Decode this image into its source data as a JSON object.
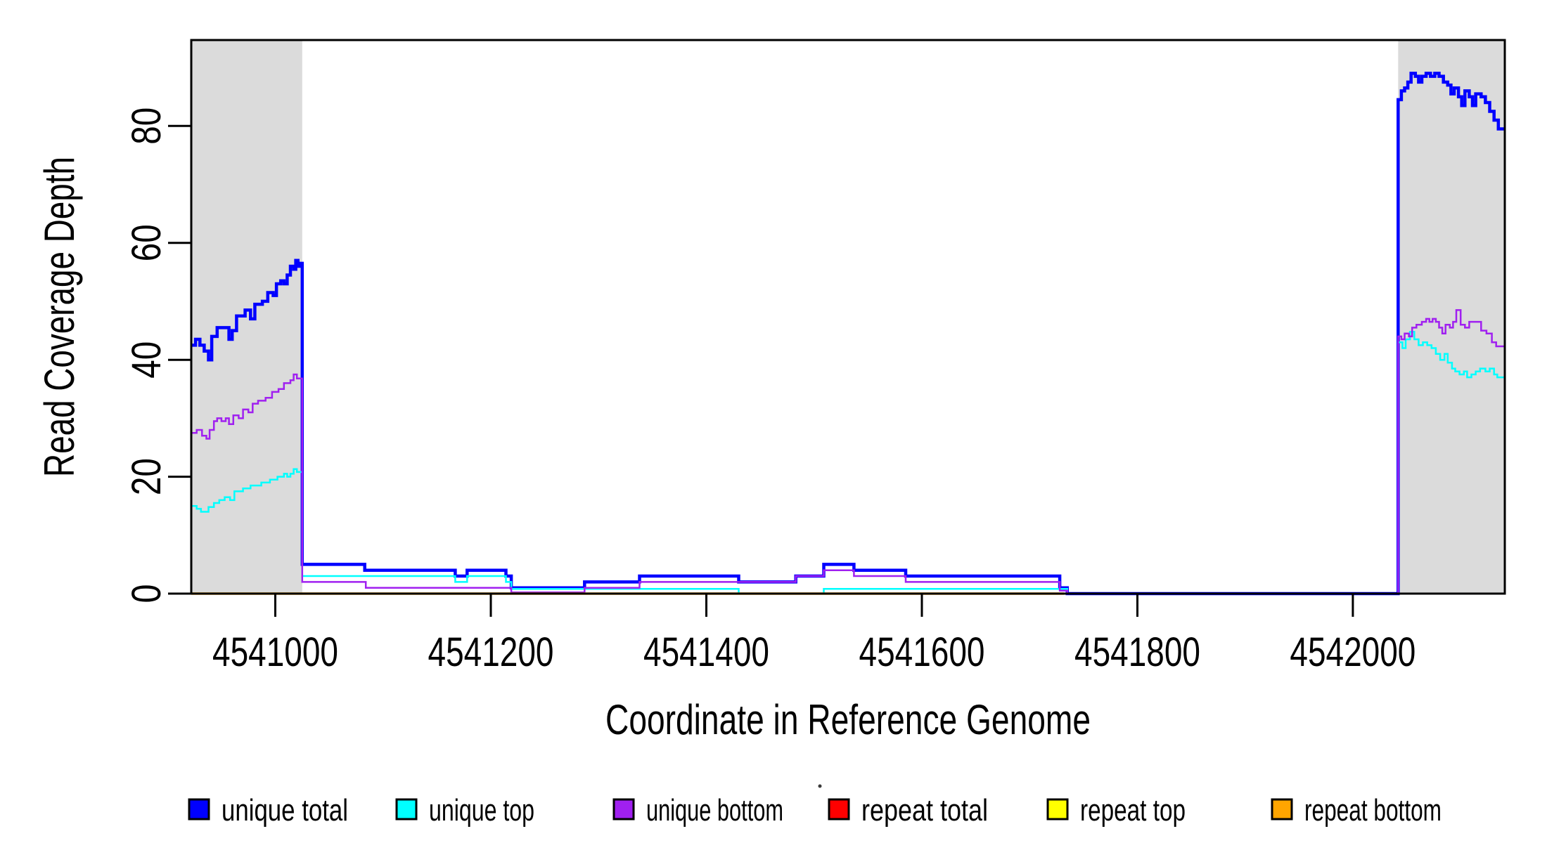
{
  "figure": {
    "background": "#ffffff",
    "shaded_region_color": "#DBDBDB",
    "stray_mark_color": "#3a3a3a"
  },
  "axes": {
    "x": {
      "label": "Coordinate in Reference Genome",
      "ticks": [
        4541000,
        4541200,
        4541400,
        4541600,
        4541800,
        4542000
      ],
      "range": [
        4540922,
        4542141
      ]
    },
    "y": {
      "label": "Read Coverage Depth",
      "ticks": [
        0,
        20,
        40,
        60,
        80
      ],
      "range": [
        0,
        94.7
      ]
    }
  },
  "chart_data": {
    "type": "line",
    "subtype": "step",
    "title": "",
    "xlabel": "Coordinate in Reference Genome",
    "ylabel": "Read Coverage Depth",
    "xlim": [
      4540922,
      4542141
    ],
    "ylim": [
      0,
      94.7
    ],
    "grid": false,
    "legend_position": "bottom",
    "shaded_regions": [
      {
        "x0": 4540922,
        "x1": 4541025
      },
      {
        "x0": 4542042,
        "x1": 4542141
      }
    ],
    "series": [
      {
        "name": "unique total",
        "color": "#0000FF",
        "width": 4.5,
        "end": 4542141,
        "points": [
          [
            4540922,
            42.5
          ],
          [
            4540926,
            43.5
          ],
          [
            4540930,
            42.5
          ],
          [
            4540934,
            41.5
          ],
          [
            4540938,
            40
          ],
          [
            4540941,
            44
          ],
          [
            4540946,
            45.5
          ],
          [
            4540953,
            45.5
          ],
          [
            4540957,
            43.5
          ],
          [
            4540960,
            45
          ],
          [
            4540964,
            47.5
          ],
          [
            4540972,
            48.5
          ],
          [
            4540977,
            47
          ],
          [
            4540981,
            49.5
          ],
          [
            4540988,
            50
          ],
          [
            4540993,
            51.5
          ],
          [
            4540998,
            51
          ],
          [
            4541001,
            53
          ],
          [
            4541005,
            53.5
          ],
          [
            4541008,
            53
          ],
          [
            4541011,
            54.5
          ],
          [
            4541014,
            56
          ],
          [
            4541017,
            55.5
          ],
          [
            4541019,
            57
          ],
          [
            4541021,
            56
          ],
          [
            4541023,
            56.5
          ],
          [
            4541025,
            5
          ],
          [
            4541083,
            4
          ],
          [
            4541167,
            3
          ],
          [
            4541178,
            4
          ],
          [
            4541214,
            3
          ],
          [
            4541219,
            1
          ],
          [
            4541287,
            2
          ],
          [
            4541338,
            3
          ],
          [
            4541430,
            2
          ],
          [
            4541483,
            3
          ],
          [
            4541509,
            5
          ],
          [
            4541537,
            4
          ],
          [
            4541585,
            3
          ],
          [
            4541728,
            1
          ],
          [
            4541735,
            0
          ],
          [
            4542042,
            84.5
          ],
          [
            4542045,
            86
          ],
          [
            4542048,
            86.5
          ],
          [
            4542051,
            87.5
          ],
          [
            4542054,
            89
          ],
          [
            4542058,
            88.5
          ],
          [
            4542061,
            87.5
          ],
          [
            4542064,
            88.5
          ],
          [
            4542068,
            89
          ],
          [
            4542072,
            88.5
          ],
          [
            4542076,
            89
          ],
          [
            4542080,
            88.5
          ],
          [
            4542084,
            87.5
          ],
          [
            4542088,
            87
          ],
          [
            4542091,
            85.5
          ],
          [
            4542094,
            86.5
          ],
          [
            4542098,
            85
          ],
          [
            4542101,
            83.5
          ],
          [
            4542104,
            86
          ],
          [
            4542108,
            85
          ],
          [
            4542111,
            83.5
          ],
          [
            4542114,
            85.5
          ],
          [
            4542119,
            85
          ],
          [
            4542123,
            84
          ],
          [
            4542127,
            82.5
          ],
          [
            4542131,
            81
          ],
          [
            4542135,
            79.5
          ]
        ]
      },
      {
        "name": "unique top",
        "color": "#00FFFF",
        "width": 2.5,
        "end": 4542141,
        "points": [
          [
            4540922,
            15
          ],
          [
            4540927,
            14.5
          ],
          [
            4540931,
            14
          ],
          [
            4540938,
            14.8
          ],
          [
            4540943,
            15.5
          ],
          [
            4540948,
            16
          ],
          [
            4540953,
            16.5
          ],
          [
            4540958,
            16
          ],
          [
            4540962,
            17.5
          ],
          [
            4540970,
            18
          ],
          [
            4540977,
            18.5
          ],
          [
            4540987,
            19
          ],
          [
            4540995,
            19.5
          ],
          [
            4541002,
            20
          ],
          [
            4541008,
            20.5
          ],
          [
            4541011,
            20
          ],
          [
            4541014,
            20.5
          ],
          [
            4541017,
            21.3
          ],
          [
            4541020,
            20.8
          ],
          [
            4541025,
            3
          ],
          [
            4541167,
            2
          ],
          [
            4541178,
            3
          ],
          [
            4541214,
            2
          ],
          [
            4541219,
            0.8
          ],
          [
            4541430,
            0
          ],
          [
            4541509,
            0.8
          ],
          [
            4541735,
            0
          ],
          [
            4542042,
            43
          ],
          [
            4542046,
            42
          ],
          [
            4542049,
            43.5
          ],
          [
            4542053,
            44.8
          ],
          [
            4542057,
            43.5
          ],
          [
            4542061,
            42.5
          ],
          [
            4542065,
            43
          ],
          [
            4542069,
            42.5
          ],
          [
            4542073,
            42
          ],
          [
            4542077,
            41
          ],
          [
            4542081,
            40
          ],
          [
            4542085,
            41
          ],
          [
            4542088,
            39.5
          ],
          [
            4542092,
            38.5
          ],
          [
            4542095,
            38
          ],
          [
            4542099,
            37.5
          ],
          [
            4542103,
            38
          ],
          [
            4542106,
            37
          ],
          [
            4542110,
            37.5
          ],
          [
            4542114,
            38
          ],
          [
            4542118,
            38.5
          ],
          [
            4542123,
            38
          ],
          [
            4542127,
            38.5
          ],
          [
            4542131,
            37.5
          ],
          [
            4542134,
            37
          ]
        ]
      },
      {
        "name": "unique bottom",
        "color": "#A020F0",
        "width": 2.5,
        "end": 4542141,
        "points": [
          [
            4540922,
            27.5
          ],
          [
            4540927,
            28
          ],
          [
            4540932,
            27
          ],
          [
            4540936,
            26.5
          ],
          [
            4540939,
            28
          ],
          [
            4540943,
            29.5
          ],
          [
            4540946,
            30
          ],
          [
            4540950,
            29.5
          ],
          [
            4540954,
            30
          ],
          [
            4540957,
            29
          ],
          [
            4540961,
            30.5
          ],
          [
            4540966,
            30
          ],
          [
            4540970,
            31.5
          ],
          [
            4540975,
            31
          ],
          [
            4540979,
            32.5
          ],
          [
            4540984,
            33
          ],
          [
            4540991,
            33.5
          ],
          [
            4540997,
            34.5
          ],
          [
            4541003,
            35
          ],
          [
            4541008,
            36
          ],
          [
            4541014,
            36.5
          ],
          [
            4541017,
            37.5
          ],
          [
            4541020,
            36.8
          ],
          [
            4541025,
            2
          ],
          [
            4541084,
            1
          ],
          [
            4541219,
            0.2
          ],
          [
            4541287,
            1
          ],
          [
            4541338,
            2
          ],
          [
            4541483,
            3
          ],
          [
            4541509,
            4
          ],
          [
            4541537,
            3
          ],
          [
            4541585,
            2
          ],
          [
            4541728,
            0.5
          ],
          [
            4541735,
            0
          ],
          [
            4542042,
            44
          ],
          [
            4542045,
            43.5
          ],
          [
            4542048,
            44.5
          ],
          [
            4542052,
            44
          ],
          [
            4542055,
            45.5
          ],
          [
            4542059,
            46
          ],
          [
            4542064,
            46.5
          ],
          [
            4542068,
            47
          ],
          [
            4542071,
            46.5
          ],
          [
            4542074,
            47
          ],
          [
            4542077,
            46.5
          ],
          [
            4542080,
            45.5
          ],
          [
            4542083,
            44.5
          ],
          [
            4542086,
            46
          ],
          [
            4542090,
            45.5
          ],
          [
            4542093,
            46.5
          ],
          [
            4542096,
            48.5
          ],
          [
            4542100,
            46
          ],
          [
            4542104,
            45.5
          ],
          [
            4542108,
            46.5
          ],
          [
            4542115,
            46.5
          ],
          [
            4542119,
            45
          ],
          [
            4542124,
            44.5
          ],
          [
            4542129,
            43
          ],
          [
            4542133,
            42.3
          ]
        ]
      },
      {
        "name": "repeat total",
        "color": "#FF0000",
        "width": 2.5,
        "end": 4541732,
        "points": [
          [
            4540922,
            0
          ]
        ]
      },
      {
        "name": "repeat top",
        "color": "#FFFF00",
        "width": 2.5,
        "end": 4541732,
        "points": [
          [
            4540922,
            0
          ]
        ]
      },
      {
        "name": "repeat bottom",
        "color": "#FFA500",
        "width": 3.5,
        "end": 4541732,
        "points": [
          [
            4540922,
            0
          ]
        ]
      }
    ]
  },
  "legend": {
    "items": [
      {
        "label": "unique total",
        "color": "#0000FF"
      },
      {
        "label": "unique top",
        "color": "#00FFFF"
      },
      {
        "label": "unique bottom",
        "color": "#A020F0"
      },
      {
        "label": "repeat total",
        "color": "#FF0000"
      },
      {
        "label": "repeat top",
        "color": "#FFFF00"
      },
      {
        "label": "repeat bottom",
        "color": "#FFA500"
      }
    ]
  }
}
